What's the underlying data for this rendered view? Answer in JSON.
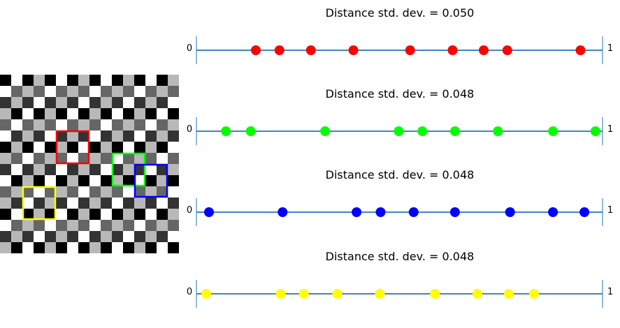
{
  "grid": {
    "rows": 16,
    "cols": 16,
    "colors": {
      "black": "#000000",
      "dark": "#333333",
      "mid": "#666666",
      "grey": "#8c8c8c",
      "light": "#b8b8b8",
      "pale": "#d9d9d9",
      "white": "#ffffff"
    }
  },
  "chart_data": [
    {
      "type": "scatter",
      "title": "Distance std. dev. = 0.050",
      "color": "#ff0000",
      "xlim": [
        0,
        1
      ],
      "start_label": "0",
      "end_label": "1",
      "x": [
        0.135,
        0.195,
        0.275,
        0.383,
        0.527,
        0.635,
        0.714,
        0.774,
        0.96
      ]
    },
    {
      "type": "scatter",
      "title": "Distance std. dev. = 0.048",
      "color": "#00ff00",
      "xlim": [
        0,
        1
      ],
      "start_label": "0",
      "end_label": "1",
      "x": [
        0.059,
        0.122,
        0.311,
        0.498,
        0.558,
        0.641,
        0.75,
        0.89,
        0.998
      ]
    },
    {
      "type": "scatter",
      "title": "Distance std. dev. = 0.048",
      "color": "#0000ff",
      "xlim": [
        0,
        1
      ],
      "start_label": "0",
      "end_label": "1",
      "x": [
        0.016,
        0.203,
        0.391,
        0.452,
        0.536,
        0.641,
        0.781,
        0.89,
        0.97
      ]
    },
    {
      "type": "scatter",
      "title": "Distance std. dev. = 0.048",
      "color": "#ffff00",
      "xlim": [
        0,
        1
      ],
      "start_label": "0",
      "end_label": "1",
      "x": [
        0.009,
        0.198,
        0.257,
        0.342,
        0.45,
        0.59,
        0.698,
        0.778,
        0.842
      ]
    }
  ],
  "windows": [
    {
      "name": "red",
      "color": "#ff0000",
      "col": 5,
      "row": 5
    },
    {
      "name": "green",
      "color": "#00ff00",
      "col": 10,
      "row": 7
    },
    {
      "name": "blue",
      "color": "#0000ff",
      "col": 12,
      "row": 8
    },
    {
      "name": "yellow",
      "color": "#ffff00",
      "col": 2,
      "row": 10
    }
  ]
}
